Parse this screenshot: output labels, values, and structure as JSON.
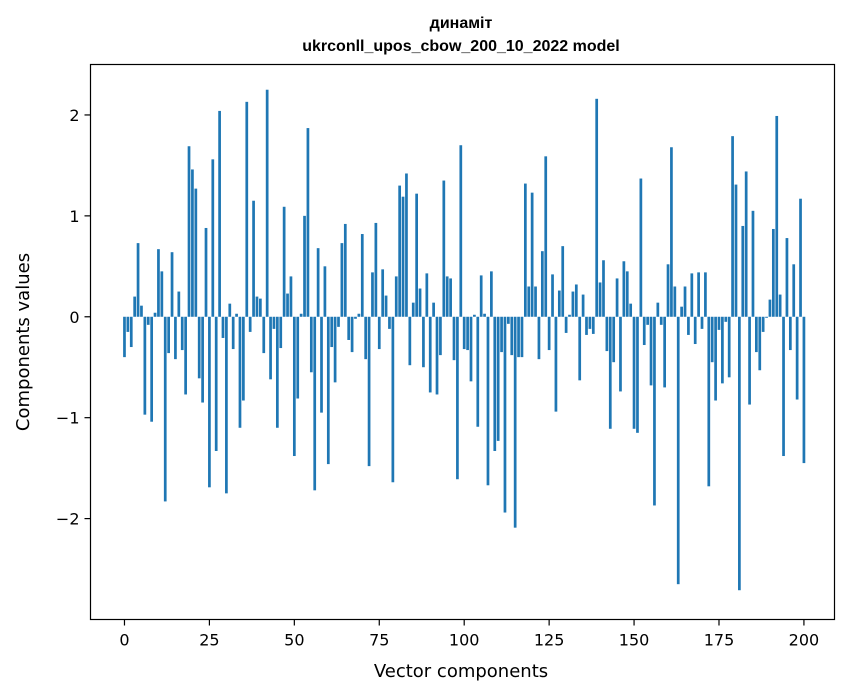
{
  "chart_data": {
    "type": "bar",
    "title_line1": "динаміт",
    "title_line2": "ukrconll_upos_cbow_200_10_2022 model",
    "xlabel": "Vector components",
    "ylabel": "Components values",
    "xlim": [
      -10,
      209
    ],
    "ylim": [
      -3.0,
      2.5
    ],
    "xticks": [
      0,
      25,
      50,
      75,
      100,
      125,
      150,
      175,
      200
    ],
    "yticks": [
      -2,
      -1,
      0,
      1,
      2
    ],
    "ytick_labels": [
      "−2",
      "−1",
      "0",
      "1",
      "2"
    ],
    "bar_color": "#1f77b4",
    "grid": false,
    "values": [
      -0.4,
      -0.15,
      -0.3,
      0.2,
      0.73,
      0.11,
      -0.97,
      -0.08,
      -1.04,
      0.04,
      0.67,
      0.45,
      -1.83,
      -0.36,
      0.64,
      -0.42,
      0.25,
      -0.33,
      -0.77,
      1.69,
      1.46,
      1.27,
      -0.61,
      -0.85,
      0.88,
      -1.69,
      1.56,
      -1.33,
      2.04,
      -0.21,
      -1.75,
      0.13,
      -0.32,
      0.03,
      -1.1,
      -0.83,
      2.13,
      -0.15,
      1.15,
      0.2,
      0.18,
      -0.36,
      2.25,
      -0.62,
      -0.12,
      -1.1,
      -0.31,
      1.09,
      0.23,
      0.4,
      -1.38,
      -0.81,
      0.03,
      1.0,
      1.87,
      -0.55,
      -1.72,
      0.68,
      -0.95,
      0.5,
      -1.46,
      -0.3,
      -0.65,
      -0.1,
      0.73,
      0.92,
      -0.23,
      -0.35,
      -0.02,
      0.03,
      0.82,
      -0.42,
      -1.48,
      0.44,
      0.93,
      -0.32,
      0.47,
      0.21,
      -0.12,
      -1.64,
      0.4,
      1.3,
      1.19,
      1.42,
      -0.48,
      0.14,
      1.22,
      0.28,
      -0.5,
      0.43,
      -0.75,
      0.14,
      -0.77,
      -0.38,
      1.35,
      0.4,
      0.38,
      -0.43,
      -1.61,
      1.7,
      -0.32,
      -0.33,
      -0.64,
      0.02,
      -1.09,
      0.41,
      0.03,
      -1.67,
      0.45,
      -1.33,
      -1.23,
      -0.35,
      -1.94,
      -0.07,
      -0.38,
      -2.09,
      -0.4,
      -0.4,
      1.32,
      0.3,
      1.23,
      0.3,
      -0.42,
      0.65,
      1.59,
      -0.33,
      0.42,
      -0.94,
      0.26,
      0.7,
      -0.16,
      0.02,
      0.25,
      0.32,
      -0.63,
      0.22,
      -0.18,
      -0.12,
      -0.17,
      2.16,
      0.34,
      0.56,
      -0.34,
      -1.11,
      -0.45,
      0.38,
      -0.74,
      0.55,
      0.45,
      0.13,
      -1.11,
      -1.15,
      1.37,
      -0.28,
      -0.08,
      -0.68,
      -1.87,
      0.14,
      -0.08,
      -0.7,
      0.52,
      1.68,
      0.3,
      -2.65,
      0.1,
      0.3,
      -0.18,
      0.43,
      -0.27,
      0.44,
      -0.12,
      0.44,
      -1.68,
      -0.45,
      -0.83,
      -0.13,
      -0.66,
      -0.05,
      -0.6,
      1.79,
      1.31,
      -2.71,
      0.9,
      1.44,
      -0.87,
      1.05,
      -0.35,
      -0.53,
      -0.15,
      -0.01,
      0.17,
      0.87,
      1.99,
      0.22,
      -1.38,
      0.78,
      -0.33,
      0.52,
      -0.82,
      1.17,
      -1.45
    ]
  }
}
